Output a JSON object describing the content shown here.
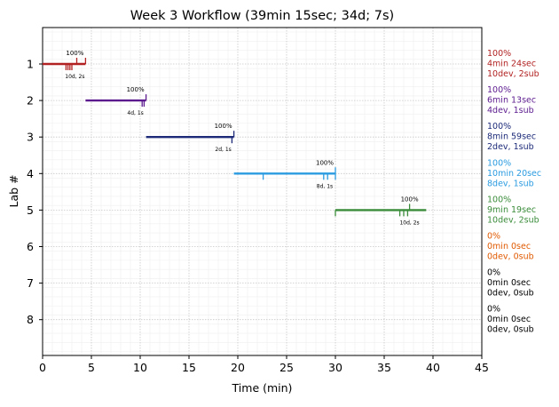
{
  "chart_data": {
    "type": "timeline",
    "title": "Week 3 Workflow (39min 15sec; 34d; 7s)",
    "xlabel": "Time (min)",
    "ylabel": "Lab #",
    "xlim": [
      0,
      45
    ],
    "x_ticks": [
      "0",
      "5",
      "10",
      "15",
      "20",
      "25",
      "30",
      "35",
      "40",
      "45"
    ],
    "y_ticks": [
      "1",
      "2",
      "3",
      "4",
      "5",
      "6",
      "7",
      "8"
    ],
    "grid": true,
    "labs": [
      {
        "lab": 1,
        "start": 0.0,
        "end": 4.4,
        "color": "#b22222",
        "pct_label": "100%",
        "sub_label": "10d, 2s",
        "up_ticks": [
          3.5,
          4.4
        ],
        "down_ticks": [
          2.4,
          2.6,
          2.8,
          3.0
        ],
        "summary": [
          "100%",
          "4min 24sec",
          "10dev, 2sub"
        ]
      },
      {
        "lab": 2,
        "start": 4.4,
        "end": 10.6,
        "color": "#5b1a8e",
        "pct_label": "100%",
        "sub_label": "4d, 1s",
        "up_ticks": [
          10.6
        ],
        "down_ticks": [
          10.2,
          10.4
        ],
        "summary": [
          "100%",
          "6min 13sec",
          "4dev, 1sub"
        ]
      },
      {
        "lab": 3,
        "start": 10.6,
        "end": 19.6,
        "color": "#1c2a78",
        "pct_label": "100%",
        "sub_label": "2d, 1s",
        "up_ticks": [
          19.6
        ],
        "down_ticks": [
          19.4
        ],
        "summary": [
          "100%",
          "8min 59sec",
          "2dev, 1sub"
        ]
      },
      {
        "lab": 4,
        "start": 19.6,
        "end": 30.0,
        "color": "#2a9be0",
        "pct_label": "100%",
        "sub_label": "8d, 1s",
        "up_ticks": [
          30.0
        ],
        "down_ticks": [
          22.6,
          28.8,
          29.2,
          30.0
        ],
        "summary": [
          "100%",
          "10min 20sec",
          "8dev, 1sub"
        ]
      },
      {
        "lab": 5,
        "start": 30.0,
        "end": 39.3,
        "color": "#3a8c3a",
        "pct_label": "100%",
        "sub_label": "10d, 2s",
        "up_ticks": [
          37.6
        ],
        "down_ticks": [
          30.0,
          36.6,
          37.0,
          37.4
        ],
        "summary": [
          "100%",
          "9min 19sec",
          "10dev, 2sub"
        ]
      },
      {
        "lab": 6,
        "color": "#e05a00",
        "summary": [
          "0%",
          "0min 0sec",
          "0dev, 0sub"
        ]
      },
      {
        "lab": 7,
        "color": "#000000",
        "summary": [
          "0%",
          "0min 0sec",
          "0dev, 0sub"
        ]
      },
      {
        "lab": 8,
        "color": "#000000",
        "summary": [
          "0%",
          "0min 0sec",
          "0dev, 0sub"
        ]
      }
    ]
  }
}
